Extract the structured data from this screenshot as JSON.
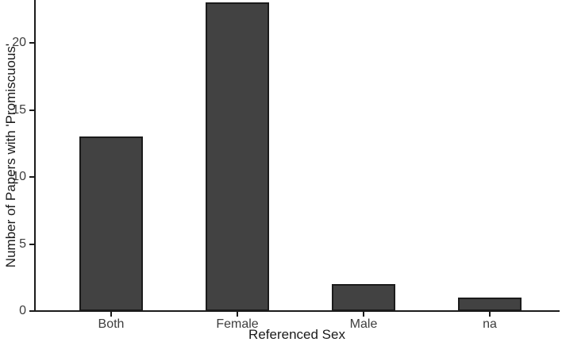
{
  "chart_data": {
    "type": "bar",
    "title": "",
    "categories": [
      "Both",
      "Female",
      "Male",
      "na"
    ],
    "values": [
      13,
      23,
      2,
      1
    ],
    "xlabel": "Referenced Sex",
    "ylabel": "Number of Papers with 'Promiscuous'",
    "yticks": [
      0,
      5,
      10,
      15,
      20
    ],
    "ylim": [
      0,
      23.2
    ],
    "grid": false,
    "legend": false,
    "bar_fill": "#424242",
    "bar_border": "#1b1b1b",
    "axis_color": "#1b1b1b",
    "tick_label_color": "#3d3d3d",
    "background": "#ffffff"
  }
}
